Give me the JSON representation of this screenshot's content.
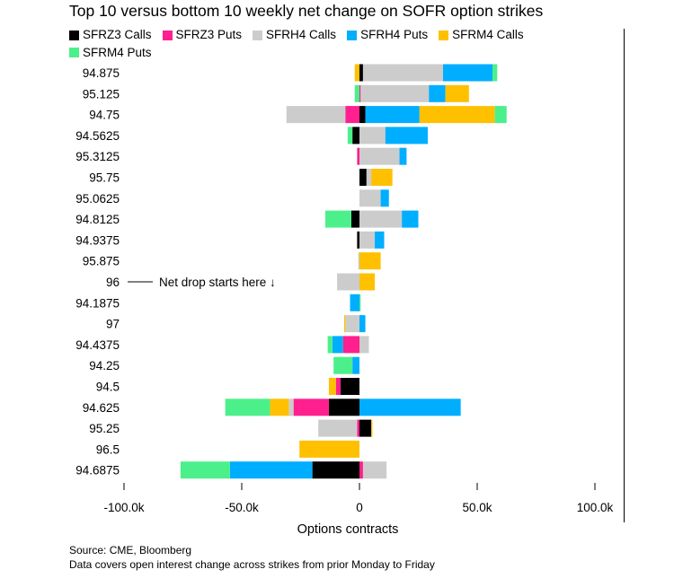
{
  "title": "Top 10 versus bottom 10 weekly net change on SOFR option strikes",
  "source_line": "Source: CME, Bloomberg",
  "note_line": "Data covers open interest change across strikes from prior Monday to Friday",
  "annotation": "Net drop starts here ↓",
  "chart_data": {
    "type": "bar",
    "orientation": "horizontal",
    "stacked": true,
    "title": "Top 10 versus bottom 10 weekly net change on SOFR option strikes",
    "xlabel": "Options contracts",
    "ylabel": "",
    "xlim": [
      -100000,
      100000
    ],
    "x_ticks": [
      -100000,
      -50000,
      0,
      50000,
      100000
    ],
    "x_tick_labels": [
      "-100.0k",
      "-50.0k",
      "0",
      "50.0k",
      "100.0k"
    ],
    "legend_position": "top",
    "categories": [
      "94.875",
      "95.125",
      "94.75",
      "94.5625",
      "95.3125",
      "95.75",
      "95.0625",
      "94.8125",
      "94.9375",
      "95.875",
      "96",
      "94.1875",
      "97",
      "94.4375",
      "94.25",
      "94.5",
      "94.625",
      "95.25",
      "96.5",
      "94.6875"
    ],
    "series": [
      {
        "name": "SFRZ3 Calls",
        "color": "#000000",
        "values": [
          1500,
          0,
          2500,
          -3000,
          0,
          3000,
          0,
          -3500,
          -1000,
          0,
          0,
          0,
          0,
          0,
          0,
          -8000,
          -13000,
          5000,
          0,
          -20000
        ]
      },
      {
        "name": "SFRZ3 Puts",
        "color": "#ff1f8e",
        "values": [
          0,
          500,
          -6000,
          0,
          -1000,
          0,
          0,
          0,
          0,
          0,
          0,
          0,
          0,
          -7000,
          0,
          -2000,
          -15000,
          -1000,
          0,
          1500
        ]
      },
      {
        "name": "SFRH4 Calls",
        "color": "#cccccc",
        "values": [
          34000,
          29000,
          -25000,
          11000,
          17000,
          2000,
          9000,
          18000,
          6500,
          -500,
          -9500,
          0,
          -6000,
          4000,
          0,
          0,
          -2000,
          -16500,
          0,
          10000
        ]
      },
      {
        "name": "SFRH4 Puts",
        "color": "#00aeff",
        "values": [
          21000,
          7000,
          23000,
          18000,
          3000,
          0,
          3500,
          7000,
          4000,
          0,
          0,
          -4000,
          2500,
          -4500,
          -3000,
          0,
          43000,
          0,
          0,
          -35000
        ]
      },
      {
        "name": "SFRM4 Calls",
        "color": "#ffc000",
        "values": [
          -2000,
          10000,
          32000,
          0,
          0,
          9000,
          0,
          0,
          0,
          9000,
          6500,
          0,
          -500,
          0,
          0,
          -3000,
          -8000,
          500,
          -25500,
          0
        ]
      },
      {
        "name": "SFRM4 Puts",
        "color": "#4bf08b",
        "values": [
          2000,
          -2000,
          5000,
          -2000,
          0,
          0,
          0,
          -11000,
          0,
          0,
          0,
          500,
          0,
          -2000,
          -8000,
          0,
          -19000,
          0,
          0,
          -21000
        ]
      }
    ]
  }
}
